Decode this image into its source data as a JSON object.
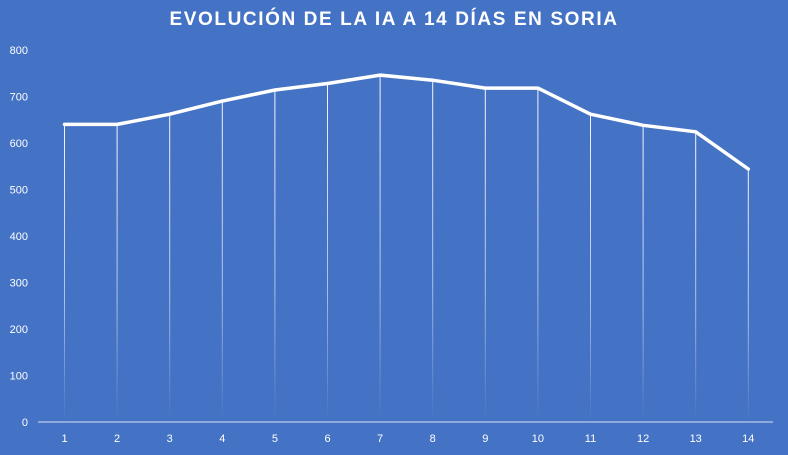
{
  "chart_data": {
    "type": "line",
    "title": "EVOLUCIÓN DE LA IA A 14 DÍAS EN SORIA",
    "xlabel": "",
    "ylabel": "",
    "categories": [
      "1",
      "2",
      "3",
      "4",
      "5",
      "6",
      "7",
      "8",
      "9",
      "10",
      "11",
      "12",
      "13",
      "14"
    ],
    "series": [
      {
        "values": [
          640,
          640,
          662,
          690,
          714,
          728,
          746,
          735,
          718,
          718,
          662,
          638,
          624,
          544
        ]
      }
    ],
    "ylim": [
      0,
      800
    ],
    "yticks": [
      "0",
      "100",
      "200",
      "300",
      "400",
      "500",
      "600",
      "700",
      "800"
    ],
    "drop_lines": true,
    "grid": false,
    "legend": "none",
    "colors": {
      "background": "#4472C4",
      "line": "#FFFFFF",
      "text": "#FFFFFF"
    }
  }
}
